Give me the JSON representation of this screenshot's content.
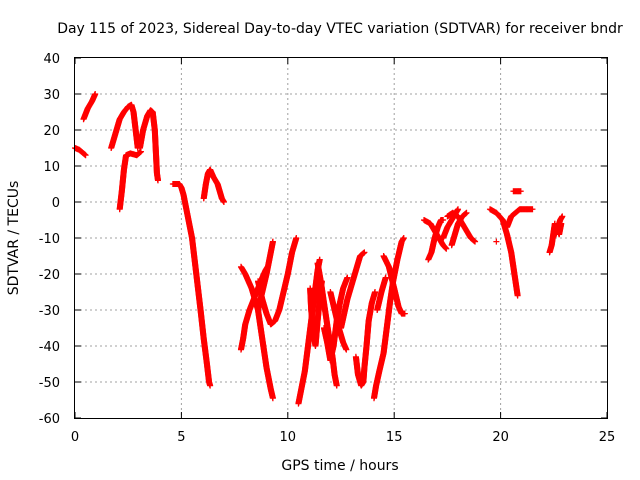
{
  "chart_data": {
    "type": "scatter",
    "title": "Day 115 of 2023, Sidereal Day-to-day VTEC variation (SDTVAR) for receiver bndr",
    "xlabel": "GPS time / hours",
    "ylabel": "SDTVAR / TECUs",
    "xlim": [
      0,
      25
    ],
    "ylim": [
      -60,
      40
    ],
    "xticks": [
      0,
      5,
      10,
      15,
      20,
      25
    ],
    "yticks": [
      -60,
      -50,
      -40,
      -30,
      -20,
      -10,
      0,
      10,
      20,
      30,
      40
    ],
    "grid": true,
    "marker": "plus",
    "color": "#ff0000",
    "traces": [
      [
        [
          0.0,
          15
        ],
        [
          0.2,
          14.5
        ],
        [
          0.4,
          13.5
        ],
        [
          0.5,
          13
        ]
      ],
      [
        [
          0.4,
          23
        ],
        [
          0.6,
          26
        ],
        [
          0.8,
          28
        ],
        [
          0.95,
          30
        ]
      ],
      [
        [
          1.7,
          15
        ],
        [
          1.9,
          19
        ],
        [
          2.1,
          23
        ],
        [
          2.3,
          25
        ],
        [
          2.5,
          26.5
        ],
        [
          2.65,
          27
        ],
        [
          2.75,
          25
        ],
        [
          2.85,
          20
        ],
        [
          2.95,
          15
        ]
      ],
      [
        [
          2.1,
          -2
        ],
        [
          2.2,
          3
        ],
        [
          2.3,
          9
        ],
        [
          2.4,
          13
        ],
        [
          2.6,
          13.5
        ],
        [
          2.9,
          13
        ],
        [
          3.1,
          14
        ]
      ],
      [
        [
          3.05,
          15
        ],
        [
          3.2,
          20
        ],
        [
          3.4,
          24
        ],
        [
          3.55,
          25.5
        ],
        [
          3.65,
          25
        ],
        [
          3.75,
          20
        ],
        [
          3.8,
          14
        ],
        [
          3.85,
          8
        ],
        [
          3.9,
          6
        ]
      ],
      [
        [
          4.6,
          5
        ],
        [
          4.9,
          5
        ],
        [
          5.0,
          4
        ],
        [
          5.1,
          2
        ],
        [
          5.2,
          -1
        ],
        [
          5.3,
          -4
        ],
        [
          5.5,
          -10
        ],
        [
          5.7,
          -20
        ],
        [
          5.9,
          -30
        ],
        [
          6.05,
          -38
        ],
        [
          6.2,
          -45
        ],
        [
          6.3,
          -50
        ],
        [
          6.35,
          -51
        ]
      ],
      [
        [
          6.05,
          1
        ],
        [
          6.15,
          5
        ],
        [
          6.25,
          8
        ],
        [
          6.35,
          9
        ],
        [
          6.5,
          7
        ],
        [
          6.7,
          5
        ],
        [
          6.8,
          3
        ],
        [
          6.9,
          1
        ],
        [
          7.0,
          0
        ]
      ],
      [
        [
          7.8,
          -41
        ],
        [
          7.9,
          -38
        ],
        [
          8.0,
          -34
        ],
        [
          8.2,
          -30
        ],
        [
          8.4,
          -27
        ],
        [
          8.6,
          -24
        ],
        [
          8.8,
          -21
        ],
        [
          8.95,
          -19
        ],
        [
          9.05,
          -18
        ]
      ],
      [
        [
          7.8,
          -18
        ],
        [
          8.0,
          -20
        ],
        [
          8.3,
          -24
        ],
        [
          8.6,
          -30
        ],
        [
          8.8,
          -38
        ],
        [
          9.0,
          -46
        ],
        [
          9.2,
          -52
        ],
        [
          9.3,
          -54.5
        ]
      ],
      [
        [
          8.6,
          -30
        ],
        [
          8.8,
          -25
        ],
        [
          9.0,
          -20
        ],
        [
          9.2,
          -14
        ],
        [
          9.3,
          -11
        ]
      ],
      [
        [
          8.6,
          -22
        ],
        [
          8.8,
          -27
        ],
        [
          9.0,
          -31
        ],
        [
          9.2,
          -34
        ],
        [
          9.4,
          -33
        ],
        [
          9.6,
          -30
        ],
        [
          9.8,
          -25
        ],
        [
          10.0,
          -20
        ],
        [
          10.2,
          -14
        ],
        [
          10.4,
          -10
        ]
      ],
      [
        [
          10.5,
          -56
        ],
        [
          10.6,
          -53
        ],
        [
          10.8,
          -47
        ],
        [
          10.95,
          -40
        ],
        [
          11.1,
          -33
        ],
        [
          11.25,
          -26
        ],
        [
          11.4,
          -19
        ],
        [
          11.5,
          -16
        ]
      ],
      [
        [
          11.05,
          -24
        ],
        [
          11.1,
          -30
        ],
        [
          11.2,
          -36
        ],
        [
          11.3,
          -40
        ],
        [
          11.4,
          -33
        ],
        [
          11.5,
          -27
        ],
        [
          11.6,
          -22
        ]
      ],
      [
        [
          11.4,
          -17
        ],
        [
          11.55,
          -22
        ],
        [
          11.7,
          -28
        ],
        [
          11.9,
          -36
        ],
        [
          12.1,
          -43
        ],
        [
          12.2,
          -48
        ],
        [
          12.3,
          -51
        ]
      ],
      [
        [
          11.7,
          -35
        ],
        [
          11.85,
          -39
        ],
        [
          12.0,
          -44
        ],
        [
          12.15,
          -40
        ],
        [
          12.3,
          -33
        ],
        [
          12.45,
          -28
        ],
        [
          12.6,
          -24
        ],
        [
          12.8,
          -21
        ]
      ],
      [
        [
          12.0,
          -25
        ],
        [
          12.2,
          -30
        ],
        [
          12.4,
          -35
        ],
        [
          12.6,
          -39
        ],
        [
          12.75,
          -41
        ]
      ],
      [
        [
          12.5,
          -35
        ],
        [
          12.8,
          -27
        ],
        [
          13.1,
          -21
        ],
        [
          13.4,
          -15
        ],
        [
          13.6,
          -14
        ]
      ],
      [
        [
          13.2,
          -43
        ],
        [
          13.3,
          -48
        ],
        [
          13.45,
          -51
        ],
        [
          13.55,
          -50
        ],
        [
          13.6,
          -46
        ],
        [
          13.7,
          -40
        ],
        [
          13.8,
          -33
        ],
        [
          13.95,
          -28
        ],
        [
          14.1,
          -25
        ]
      ],
      [
        [
          14.05,
          -54.5
        ],
        [
          14.15,
          -51
        ],
        [
          14.3,
          -47
        ],
        [
          14.5,
          -42
        ],
        [
          14.65,
          -35
        ],
        [
          14.8,
          -28
        ],
        [
          14.95,
          -22
        ],
        [
          15.15,
          -16
        ],
        [
          15.35,
          -11
        ],
        [
          15.45,
          -10
        ]
      ],
      [
        [
          14.5,
          -15
        ],
        [
          14.75,
          -18
        ],
        [
          15.0,
          -24
        ],
        [
          15.2,
          -29
        ],
        [
          15.35,
          -31
        ],
        [
          15.5,
          -31
        ]
      ],
      [
        [
          14.2,
          -30
        ],
        [
          14.4,
          -25
        ],
        [
          14.6,
          -21
        ]
      ],
      [
        [
          16.4,
          -5
        ],
        [
          16.7,
          -6
        ],
        [
          16.9,
          -8
        ],
        [
          17.1,
          -10
        ],
        [
          17.3,
          -12
        ],
        [
          17.45,
          -13
        ]
      ],
      [
        [
          16.6,
          -16
        ],
        [
          16.75,
          -14
        ],
        [
          16.9,
          -10
        ],
        [
          17.05,
          -7
        ],
        [
          17.2,
          -5
        ],
        [
          17.3,
          -5
        ]
      ],
      [
        [
          17.3,
          -10
        ],
        [
          17.5,
          -7
        ],
        [
          17.7,
          -5
        ],
        [
          17.9,
          -3
        ],
        [
          18.0,
          -2
        ]
      ],
      [
        [
          17.5,
          -4
        ],
        [
          17.75,
          -3
        ],
        [
          18.0,
          -4
        ],
        [
          18.2,
          -6
        ],
        [
          18.4,
          -8
        ],
        [
          18.6,
          -10
        ],
        [
          18.8,
          -11
        ]
      ],
      [
        [
          17.7,
          -12
        ],
        [
          17.85,
          -9
        ],
        [
          18.0,
          -6
        ],
        [
          18.2,
          -4
        ],
        [
          18.4,
          -3
        ]
      ],
      [
        [
          19.5,
          -2
        ],
        [
          19.8,
          -3
        ],
        [
          20.1,
          -5
        ],
        [
          20.3,
          -9
        ],
        [
          20.5,
          -14
        ],
        [
          20.6,
          -18
        ],
        [
          20.7,
          -22
        ],
        [
          20.8,
          -26
        ]
      ],
      [
        [
          20.3,
          -7
        ],
        [
          20.5,
          -4
        ],
        [
          20.7,
          -3
        ],
        [
          20.9,
          -2
        ],
        [
          21.1,
          -2
        ],
        [
          21.3,
          -2
        ],
        [
          21.5,
          -2
        ]
      ],
      [
        [
          20.6,
          3
        ],
        [
          20.8,
          3
        ],
        [
          20.95,
          3
        ]
      ],
      [
        [
          19.8,
          -11
        ]
      ],
      [
        [
          22.3,
          -14
        ],
        [
          22.4,
          -12
        ],
        [
          22.5,
          -8
        ],
        [
          22.55,
          -6
        ]
      ],
      [
        [
          22.6,
          -9
        ],
        [
          22.7,
          -7
        ],
        [
          22.8,
          -5
        ],
        [
          22.9,
          -4
        ]
      ],
      [
        [
          22.65,
          -7
        ],
        [
          22.75,
          -9
        ],
        [
          22.85,
          -6
        ]
      ]
    ]
  }
}
